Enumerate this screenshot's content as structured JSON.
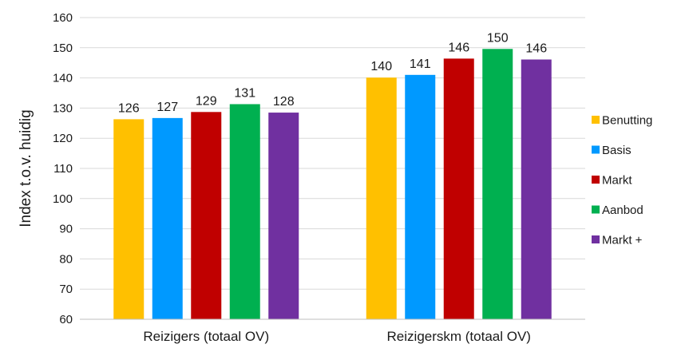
{
  "chart_data": {
    "type": "bar",
    "title": "",
    "xlabel": "",
    "ylabel": "Index t.o.v. huidig",
    "ylim": [
      60,
      160
    ],
    "yticks": [
      60,
      70,
      80,
      90,
      100,
      110,
      120,
      130,
      140,
      150,
      160
    ],
    "grid": true,
    "legend_position": "right",
    "categories": [
      "Reizigers (totaal OV)",
      "Reizigerskm (totaal OV)"
    ],
    "series": [
      {
        "name": "Benutting",
        "color": "#FFC000",
        "values": [
          126.3,
          140.1
        ],
        "labels": [
          "126",
          "140"
        ]
      },
      {
        "name": "Basis",
        "color": "#0099FF",
        "values": [
          126.7,
          141.0
        ],
        "labels": [
          "127",
          "141"
        ]
      },
      {
        "name": "Markt",
        "color": "#C00000",
        "values": [
          128.7,
          146.4
        ],
        "labels": [
          "129",
          "146"
        ]
      },
      {
        "name": "Aanbod",
        "color": "#00B050",
        "values": [
          131.3,
          149.6
        ],
        "labels": [
          "131",
          "150"
        ]
      },
      {
        "name": "Markt +",
        "color": "#7030A0",
        "values": [
          128.5,
          146.1
        ],
        "labels": [
          "128",
          "146"
        ]
      }
    ]
  }
}
